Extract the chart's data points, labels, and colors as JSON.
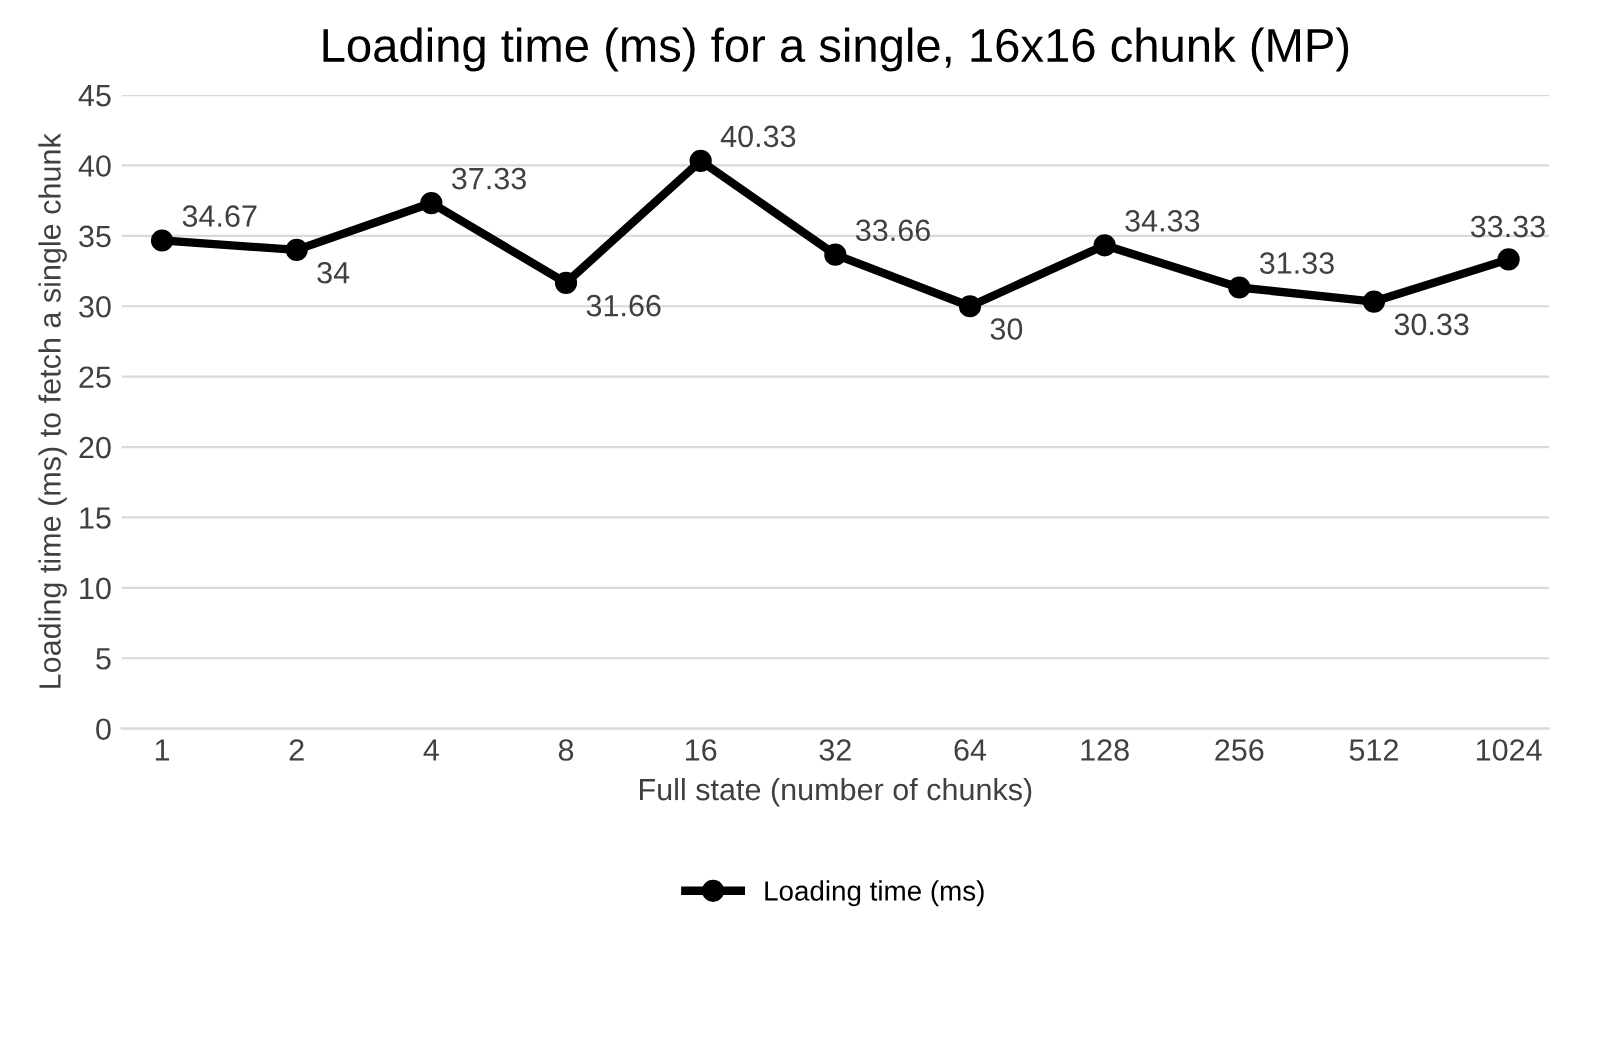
{
  "chart_data": {
    "type": "line",
    "title": "Loading time (ms) for a single, 16x16 chunk (MP)",
    "xlabel": "Full state (number of chunks)",
    "ylabel": "Loading time (ms) to fetch a single chunk",
    "categories": [
      "1",
      "2",
      "4",
      "8",
      "16",
      "32",
      "64",
      "128",
      "256",
      "512",
      "1024"
    ],
    "series": [
      {
        "name": "Loading time (ms)",
        "color": "#000000",
        "values": [
          34.67,
          34,
          37.33,
          31.66,
          40.33,
          33.66,
          30,
          34.33,
          31.33,
          30.33,
          33.33
        ]
      }
    ],
    "ylim": [
      0,
      45
    ],
    "yticks": [
      0,
      5,
      10,
      15,
      20,
      25,
      30,
      35,
      40,
      45
    ],
    "grid": "y",
    "legend": "bottom",
    "marker": "circle",
    "line_style": "solid",
    "data_labels": true
  }
}
